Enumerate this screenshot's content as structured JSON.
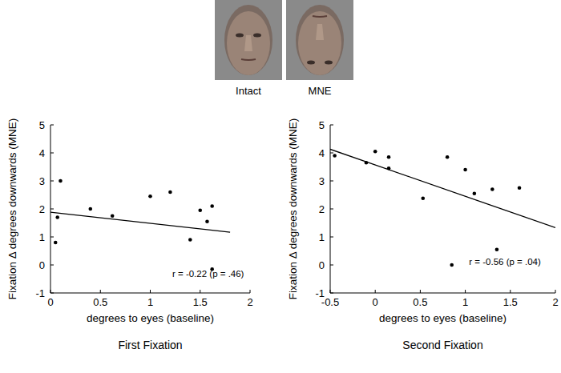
{
  "images": [
    {
      "label": "Intact"
    },
    {
      "label": "MNE"
    }
  ],
  "chart_data": [
    {
      "type": "scatter",
      "title": "First Fixation",
      "x_label": "degrees to eyes (baseline)",
      "y_label": "Fixation Δ degrees downwards  (MNE)",
      "annotation": "r = -0.22 (p = .46)",
      "x": [
        0.05,
        0.07,
        0.1,
        0.4,
        0.62,
        1.0,
        1.2,
        1.4,
        1.5,
        1.57,
        1.62,
        1.62
      ],
      "values": [
        0.8,
        1.7,
        3.0,
        2.0,
        1.75,
        2.45,
        2.6,
        0.9,
        1.95,
        1.55,
        2.1,
        -0.15
      ],
      "fit": {
        "x": [
          0,
          1.8
        ],
        "y": [
          1.88,
          1.17
        ]
      },
      "color": "#000000",
      "marker": "circle",
      "xlim": [
        0,
        2
      ],
      "xticks": [
        0,
        0.5,
        1,
        1.5,
        2
      ],
      "ylim": [
        -1,
        5
      ],
      "yticks": [
        -1,
        0,
        1,
        2,
        3,
        4,
        5
      ],
      "grid": false
    },
    {
      "type": "scatter",
      "title": "Second Fixation",
      "x_label": "degrees to eyes (baseline)",
      "y_label": "Fixation Δ degrees downwards  (MNE)",
      "annotation": "r = -0.56 (p = .04)",
      "x": [
        -0.45,
        -0.1,
        0.0,
        0.15,
        0.15,
        0.53,
        0.8,
        0.85,
        1.0,
        1.1,
        1.3,
        1.35,
        1.6
      ],
      "values": [
        3.9,
        3.65,
        4.05,
        3.85,
        3.45,
        2.38,
        3.85,
        0.0,
        3.4,
        2.55,
        2.7,
        0.55,
        2.75
      ],
      "fit": {
        "x": [
          -0.5,
          2
        ],
        "y": [
          4.13,
          1.33
        ]
      },
      "color": "#000000",
      "marker": "circle",
      "xlim": [
        -0.5,
        2
      ],
      "xticks": [
        -0.5,
        0,
        0.5,
        1,
        1.5,
        2
      ],
      "ylim": [
        -1,
        5
      ],
      "yticks": [
        -1,
        0,
        1,
        2,
        3,
        4,
        5
      ],
      "grid": false
    }
  ]
}
